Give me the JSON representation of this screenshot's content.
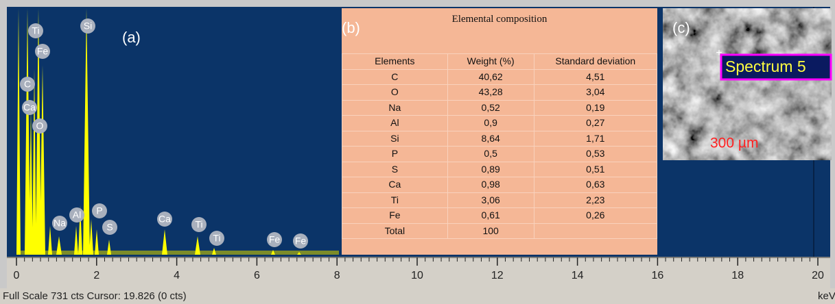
{
  "spectrum": {
    "panel_label": "(a)",
    "peak_labels": [
      "Ti",
      "Fe",
      "C",
      "Ca",
      "O",
      "Si",
      "Na",
      "Al",
      "P",
      "S",
      "Ca",
      "Ti",
      "Ti",
      "Fe",
      "Fe"
    ],
    "x_ticks": [
      "0",
      "2",
      "4",
      "6",
      "8",
      "10",
      "12",
      "14",
      "16",
      "18",
      "20"
    ],
    "axis_unit": "keV",
    "status": "Full Scale 731 cts Cursor: 19.826  (0 cts)"
  },
  "table": {
    "panel_label": "(b)",
    "title": "Elemental composition",
    "header": [
      "Elements",
      "Weight (%)",
      "Standard deviation"
    ],
    "rows": [
      [
        "C",
        "40,62",
        "4,51"
      ],
      [
        "O",
        "43,28",
        "3,04"
      ],
      [
        "Na",
        "0,52",
        "0,19"
      ],
      [
        "Al",
        "0,9",
        "0,27"
      ],
      [
        "Si",
        "8,64",
        "1,71"
      ],
      [
        "P",
        "0,5",
        "0,53"
      ],
      [
        "S",
        "0,89",
        "0,51"
      ],
      [
        "Ca",
        "0,98",
        "0,63"
      ],
      [
        "Ti",
        "3,06",
        "2,23"
      ],
      [
        "Fe",
        "0,61",
        "0,26"
      ],
      [
        "Total",
        "100",
        ""
      ]
    ]
  },
  "image": {
    "panel_label": "(c)",
    "spectrum_tag": "Spectrum 5",
    "scale": "300 µm"
  }
}
